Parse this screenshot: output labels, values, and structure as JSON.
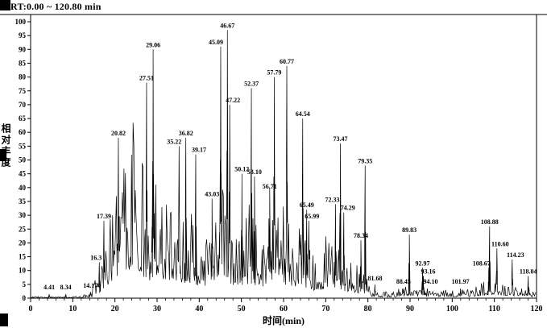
{
  "header": {
    "rt_label": "RT:0.00 ~ 120.80 min"
  },
  "axes": {
    "y_label": "相对丰度",
    "x_label": "时间(min)",
    "y_ticks": [
      0,
      5,
      10,
      15,
      20,
      25,
      30,
      35,
      40,
      45,
      50,
      55,
      60,
      65,
      70,
      75,
      80,
      85,
      90,
      95,
      100
    ],
    "x_ticks": [
      0,
      10,
      20,
      30,
      40,
      50,
      60,
      70,
      80,
      90,
      100,
      110,
      120
    ]
  },
  "colors": {
    "trace": "#000000",
    "background": "#ffffff",
    "text": "#000000"
  },
  "chart_data": {
    "type": "line",
    "title": "",
    "xlabel": "时间(min)",
    "ylabel": "相对丰度",
    "xlim": [
      0,
      120
    ],
    "ylim": [
      0,
      100
    ],
    "rt_range": "RT:0.00 ~ 120.80 min",
    "peaks": [
      {
        "label": "4.41",
        "t": 4.41,
        "h": 1.5,
        "ly": -3
      },
      {
        "label": "8.34",
        "t": 8.34,
        "h": 1.5,
        "ly": -3
      },
      {
        "label": "14.17",
        "t": 14.17,
        "h": 2,
        "ly": -3
      },
      {
        "label": "16.3",
        "t": 16.3,
        "h": 13,
        "lx": -4
      },
      {
        "label": "17.39",
        "t": 17.39,
        "h": 28
      },
      {
        "label": "20.82",
        "t": 20.82,
        "h": 58
      },
      {
        "label": "27.51",
        "t": 27.51,
        "h": 78
      },
      {
        "label": "29.06",
        "t": 29.06,
        "h": 90
      },
      {
        "label": "35.22",
        "t": 35.22,
        "h": 55,
        "lx": -6
      },
      {
        "label": "36.82",
        "t": 36.82,
        "h": 58
      },
      {
        "label": "39.17",
        "t": 39.17,
        "h": 52,
        "lx": 4
      },
      {
        "label": "43.03",
        "t": 43.03,
        "h": 36
      },
      {
        "label": "45.09",
        "t": 45.09,
        "h": 91,
        "lx": -6
      },
      {
        "label": "46.67",
        "t": 46.67,
        "h": 97
      },
      {
        "label": "47.22",
        "t": 47.22,
        "h": 70,
        "lx": 4
      },
      {
        "label": "50.12",
        "t": 50.12,
        "h": 45
      },
      {
        "label": "52.37",
        "t": 52.37,
        "h": 76
      },
      {
        "label": "53.10",
        "t": 53.1,
        "h": 44
      },
      {
        "label": "56.71",
        "t": 56.71,
        "h": 40,
        "ly": 4
      },
      {
        "label": "57.79",
        "t": 57.79,
        "h": 80
      },
      {
        "label": "60.77",
        "t": 60.77,
        "h": 84
      },
      {
        "label": "64.54",
        "t": 64.54,
        "h": 65
      },
      {
        "label": "65.49",
        "t": 65.49,
        "h": 32
      },
      {
        "label": "65.99",
        "t": 65.99,
        "h": 28,
        "lx": 4
      },
      {
        "label": "72.33",
        "t": 72.33,
        "h": 34,
        "lx": -4
      },
      {
        "label": "73.47",
        "t": 73.47,
        "h": 56
      },
      {
        "label": "74.29",
        "t": 74.29,
        "h": 31,
        "lx": 5
      },
      {
        "label": "78.34",
        "t": 78.34,
        "h": 21
      },
      {
        "label": "79.35",
        "t": 79.35,
        "h": 48
      },
      {
        "label": "81.68",
        "t": 81.68,
        "h": 5,
        "ly": -2
      },
      {
        "label": "88.45",
        "t": 88.45,
        "h": 3.5,
        "ly": -3
      },
      {
        "label": "89.83",
        "t": 89.83,
        "h": 23
      },
      {
        "label": "92.97",
        "t": 92.97,
        "h": 11
      },
      {
        "label": "93.16",
        "t": 93.16,
        "h": 8,
        "lx": 6
      },
      {
        "label": "94.10",
        "t": 94.1,
        "h": 3.5,
        "lx": 4,
        "ly": -3
      },
      {
        "label": "101.97",
        "t": 101.97,
        "h": 3.5,
        "ly": -3
      },
      {
        "label": "108.67",
        "t": 108.67,
        "h": 11,
        "lx": -9
      },
      {
        "label": "108.88",
        "t": 108.88,
        "h": 26
      },
      {
        "label": "110.60",
        "t": 110.6,
        "h": 18,
        "lx": 4
      },
      {
        "label": "114.23",
        "t": 114.23,
        "h": 14,
        "lx": 4
      },
      {
        "label": "118.04",
        "t": 118.04,
        "h": 8
      }
    ],
    "noise_envelope": [
      [
        0,
        0.6
      ],
      [
        12,
        0.8
      ],
      [
        14,
        2
      ],
      [
        15,
        5
      ],
      [
        16,
        10
      ],
      [
        17,
        18
      ],
      [
        18,
        30
      ],
      [
        19,
        38
      ],
      [
        20,
        48
      ],
      [
        21,
        58
      ],
      [
        22,
        68
      ],
      [
        23,
        62
      ],
      [
        24,
        72
      ],
      [
        25,
        66
      ],
      [
        26,
        58
      ],
      [
        27,
        50
      ],
      [
        28,
        42
      ],
      [
        30,
        52
      ],
      [
        32,
        40
      ],
      [
        34,
        42
      ],
      [
        36,
        38
      ],
      [
        38,
        34
      ],
      [
        40,
        30
      ],
      [
        42,
        30
      ],
      [
        44,
        42
      ],
      [
        46,
        40
      ],
      [
        48,
        32
      ],
      [
        50,
        32
      ],
      [
        52,
        34
      ],
      [
        54,
        26
      ],
      [
        56,
        30
      ],
      [
        58,
        30
      ],
      [
        60,
        34
      ],
      [
        62,
        27
      ],
      [
        64,
        30
      ],
      [
        66,
        22
      ],
      [
        68,
        16
      ],
      [
        70,
        24
      ],
      [
        72,
        22
      ],
      [
        74,
        18
      ],
      [
        76,
        13
      ],
      [
        78,
        12
      ],
      [
        80,
        8
      ],
      [
        81,
        4
      ],
      [
        83,
        2.5
      ],
      [
        86,
        3
      ],
      [
        89,
        4.5
      ],
      [
        91,
        4
      ],
      [
        93,
        4
      ],
      [
        96,
        3
      ],
      [
        99,
        3
      ],
      [
        102,
        3
      ],
      [
        105,
        4
      ],
      [
        107,
        6
      ],
      [
        109,
        8
      ],
      [
        111,
        6
      ],
      [
        113,
        6
      ],
      [
        115,
        4.5
      ],
      [
        117,
        4
      ],
      [
        119,
        3
      ],
      [
        120,
        2
      ]
    ]
  }
}
